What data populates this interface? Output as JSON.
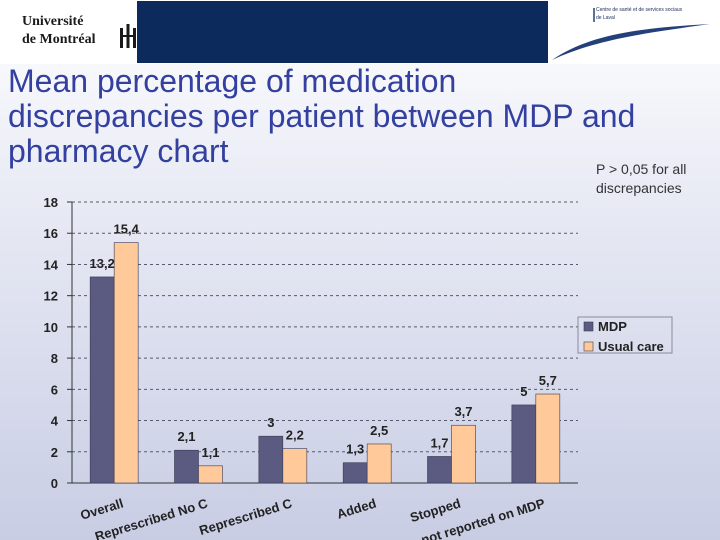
{
  "header": {
    "institution_line1": "Université",
    "institution_line2": "de Montréal",
    "partner_line1": "Centre de santé et de services sociaux",
    "partner_line2": "de Laval",
    "band_color": "#0d2a5c"
  },
  "title": "Mean percentage of medication discrepancies per patient between MDP and pharmacy chart",
  "note": "P > 0,05 for all discrepancies",
  "chart_data": {
    "type": "bar",
    "categories": [
      "Overall",
      "Represcribed No C",
      "Represcribed C",
      "Added",
      "Stopped",
      "not reported on MDP"
    ],
    "series": [
      {
        "name": "MDP",
        "values": [
          13.2,
          2.1,
          3,
          1.3,
          1.7,
          5
        ],
        "labels": [
          "13,2",
          "2,1",
          "3",
          "1,3",
          "1,7",
          "5"
        ],
        "color": "#5b5a80"
      },
      {
        "name": "Usual care",
        "values": [
          15.4,
          1.1,
          2.2,
          2.5,
          3.7,
          5.7
        ],
        "labels": [
          "15,4",
          "1,1",
          "2,2",
          "2,5",
          "3,7",
          "5,7"
        ],
        "color": "#ffc99a"
      }
    ],
    "ylim": [
      0,
      18
    ],
    "yticks": [
      0,
      2,
      4,
      6,
      8,
      10,
      12,
      14,
      16,
      18
    ],
    "grid": true,
    "legend": "right"
  }
}
